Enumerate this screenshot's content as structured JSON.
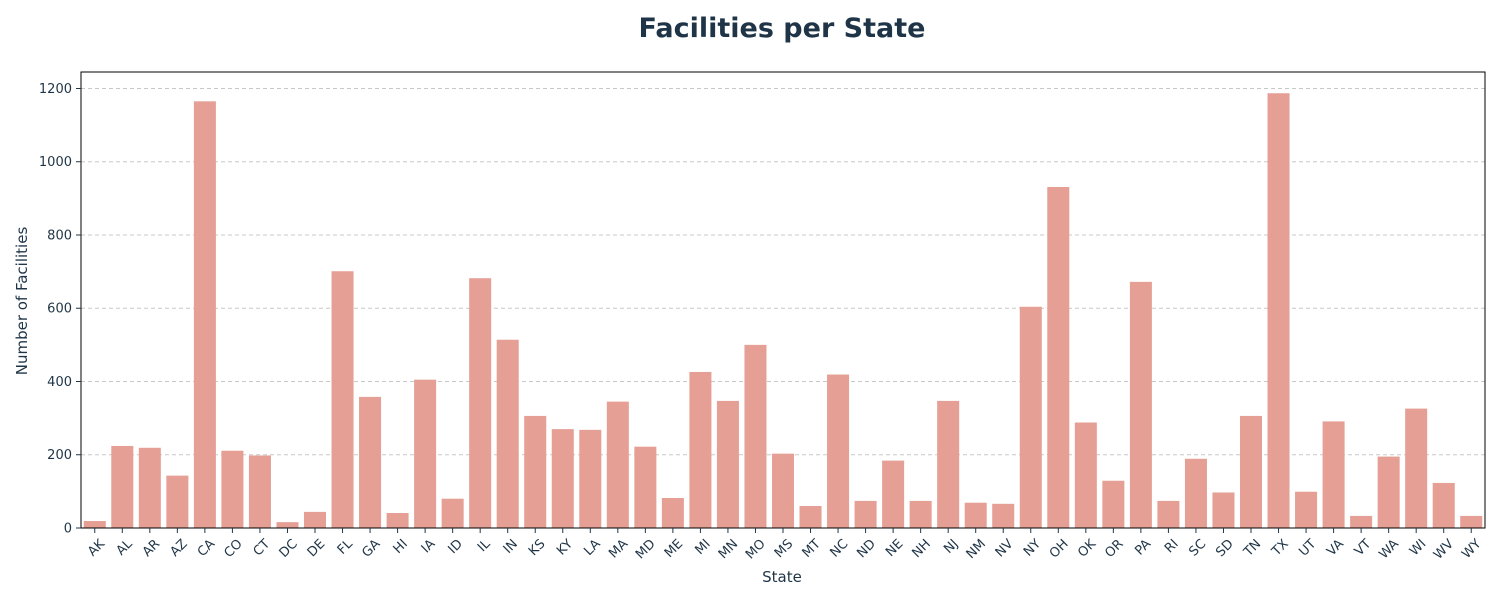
{
  "chart_data": {
    "type": "bar",
    "title": "Facilities per State",
    "xlabel": "State",
    "ylabel": "Number of Facilities",
    "ylim": [
      0,
      1245
    ],
    "yticks": [
      0,
      200,
      400,
      600,
      800,
      1000,
      1200
    ],
    "grid": "horizontal dashed",
    "bar_color": "#e59f94",
    "text_color": "#1f3547",
    "categories": [
      "AK",
      "AL",
      "AR",
      "AZ",
      "CA",
      "CO",
      "CT",
      "DC",
      "DE",
      "FL",
      "GA",
      "HI",
      "IA",
      "ID",
      "IL",
      "IN",
      "KS",
      "KY",
      "LA",
      "MA",
      "MD",
      "ME",
      "MI",
      "MN",
      "MO",
      "MS",
      "MT",
      "NC",
      "ND",
      "NE",
      "NH",
      "NJ",
      "NM",
      "NV",
      "NY",
      "OH",
      "OK",
      "OR",
      "PA",
      "RI",
      "SC",
      "SD",
      "TN",
      "TX",
      "UT",
      "VA",
      "VT",
      "WA",
      "WI",
      "WV",
      "WY"
    ],
    "values": [
      19,
      224,
      219,
      143,
      1165,
      211,
      198,
      16,
      44,
      701,
      358,
      41,
      405,
      80,
      682,
      514,
      306,
      270,
      268,
      345,
      222,
      82,
      426,
      347,
      500,
      203,
      60,
      419,
      74,
      184,
      74,
      347,
      69,
      66,
      604,
      931,
      288,
      129,
      672,
      74,
      189,
      97,
      306,
      1187,
      99,
      291,
      33,
      195,
      326,
      123,
      33
    ]
  }
}
